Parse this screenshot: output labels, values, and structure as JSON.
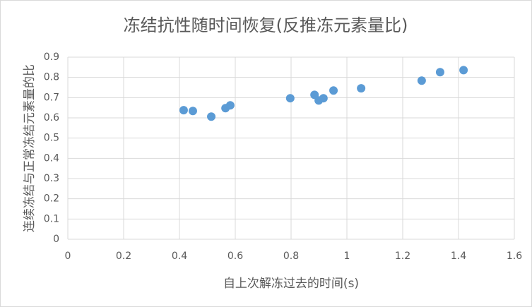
{
  "chart_data": {
    "type": "scatter",
    "title": "冻结抗性随时间恢复(反推冻元素量比)",
    "x_label": "自上次解冻过去的时间(s)",
    "y_label": "连续冻结与正常冻结元素量的比",
    "x": [
      0.415,
      0.448,
      0.514,
      0.565,
      0.582,
      0.797,
      0.884,
      0.899,
      0.916,
      0.952,
      1.051,
      1.268,
      1.334,
      1.418
    ],
    "values": [
      0.638,
      0.634,
      0.606,
      0.648,
      0.662,
      0.697,
      0.714,
      0.686,
      0.697,
      0.735,
      0.746,
      0.784,
      0.826,
      0.836
    ],
    "color": "#5b9bd5",
    "xlim": [
      0,
      1.6
    ],
    "xticks": [
      0,
      0.2,
      0.4,
      0.6,
      0.8,
      1,
      1.2,
      1.4,
      1.6
    ],
    "ylim": [
      0,
      0.9
    ],
    "yticks": [
      0,
      0.1,
      0.2,
      0.3,
      0.4,
      0.5,
      0.6,
      0.7,
      0.8,
      0.9
    ],
    "grid": true
  }
}
